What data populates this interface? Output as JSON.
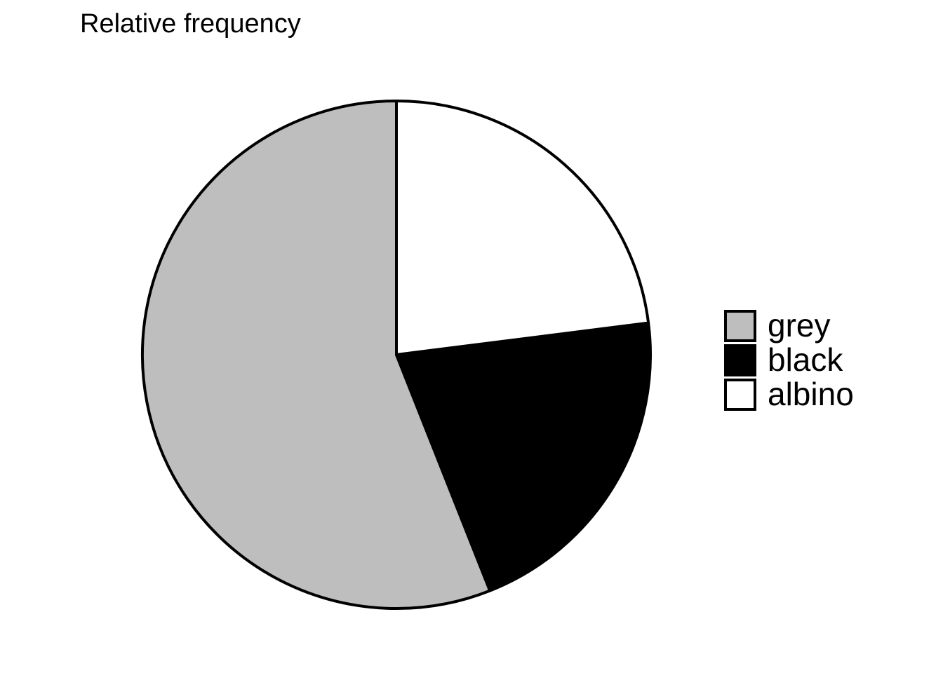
{
  "chart_data": {
    "type": "pie",
    "title": "Relative frequency",
    "categories": [
      "grey",
      "black",
      "albino"
    ],
    "values": [
      0.56,
      0.21,
      0.23
    ],
    "colors": [
      "#bebebe",
      "#000000",
      "#ffffff"
    ],
    "legend_placement": "right",
    "start_direction": "top",
    "rotation": "counter-clockwise"
  }
}
